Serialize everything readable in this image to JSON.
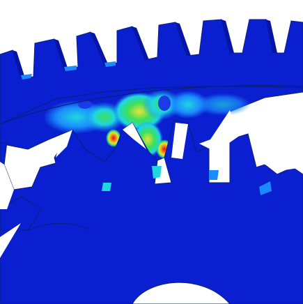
{
  "view": {
    "background_color": "#ffffff",
    "description_visible_text": ""
  },
  "colors": {
    "mesh_blue": "#0a1fd0",
    "mesh_blue_dark": "#0614a8",
    "mesh_edge": "#0b1f7a",
    "stress_low": "#1a8cff",
    "stress_cyan": "#1fd6e0",
    "stress_green": "#3ce05a",
    "stress_yellow": "#e6e23a",
    "stress_orange": "#f28a1c",
    "stress_red": "#e01414"
  },
  "icons": {
    "large_gear": "gear-icon",
    "pinion_gear": "gear-icon"
  }
}
